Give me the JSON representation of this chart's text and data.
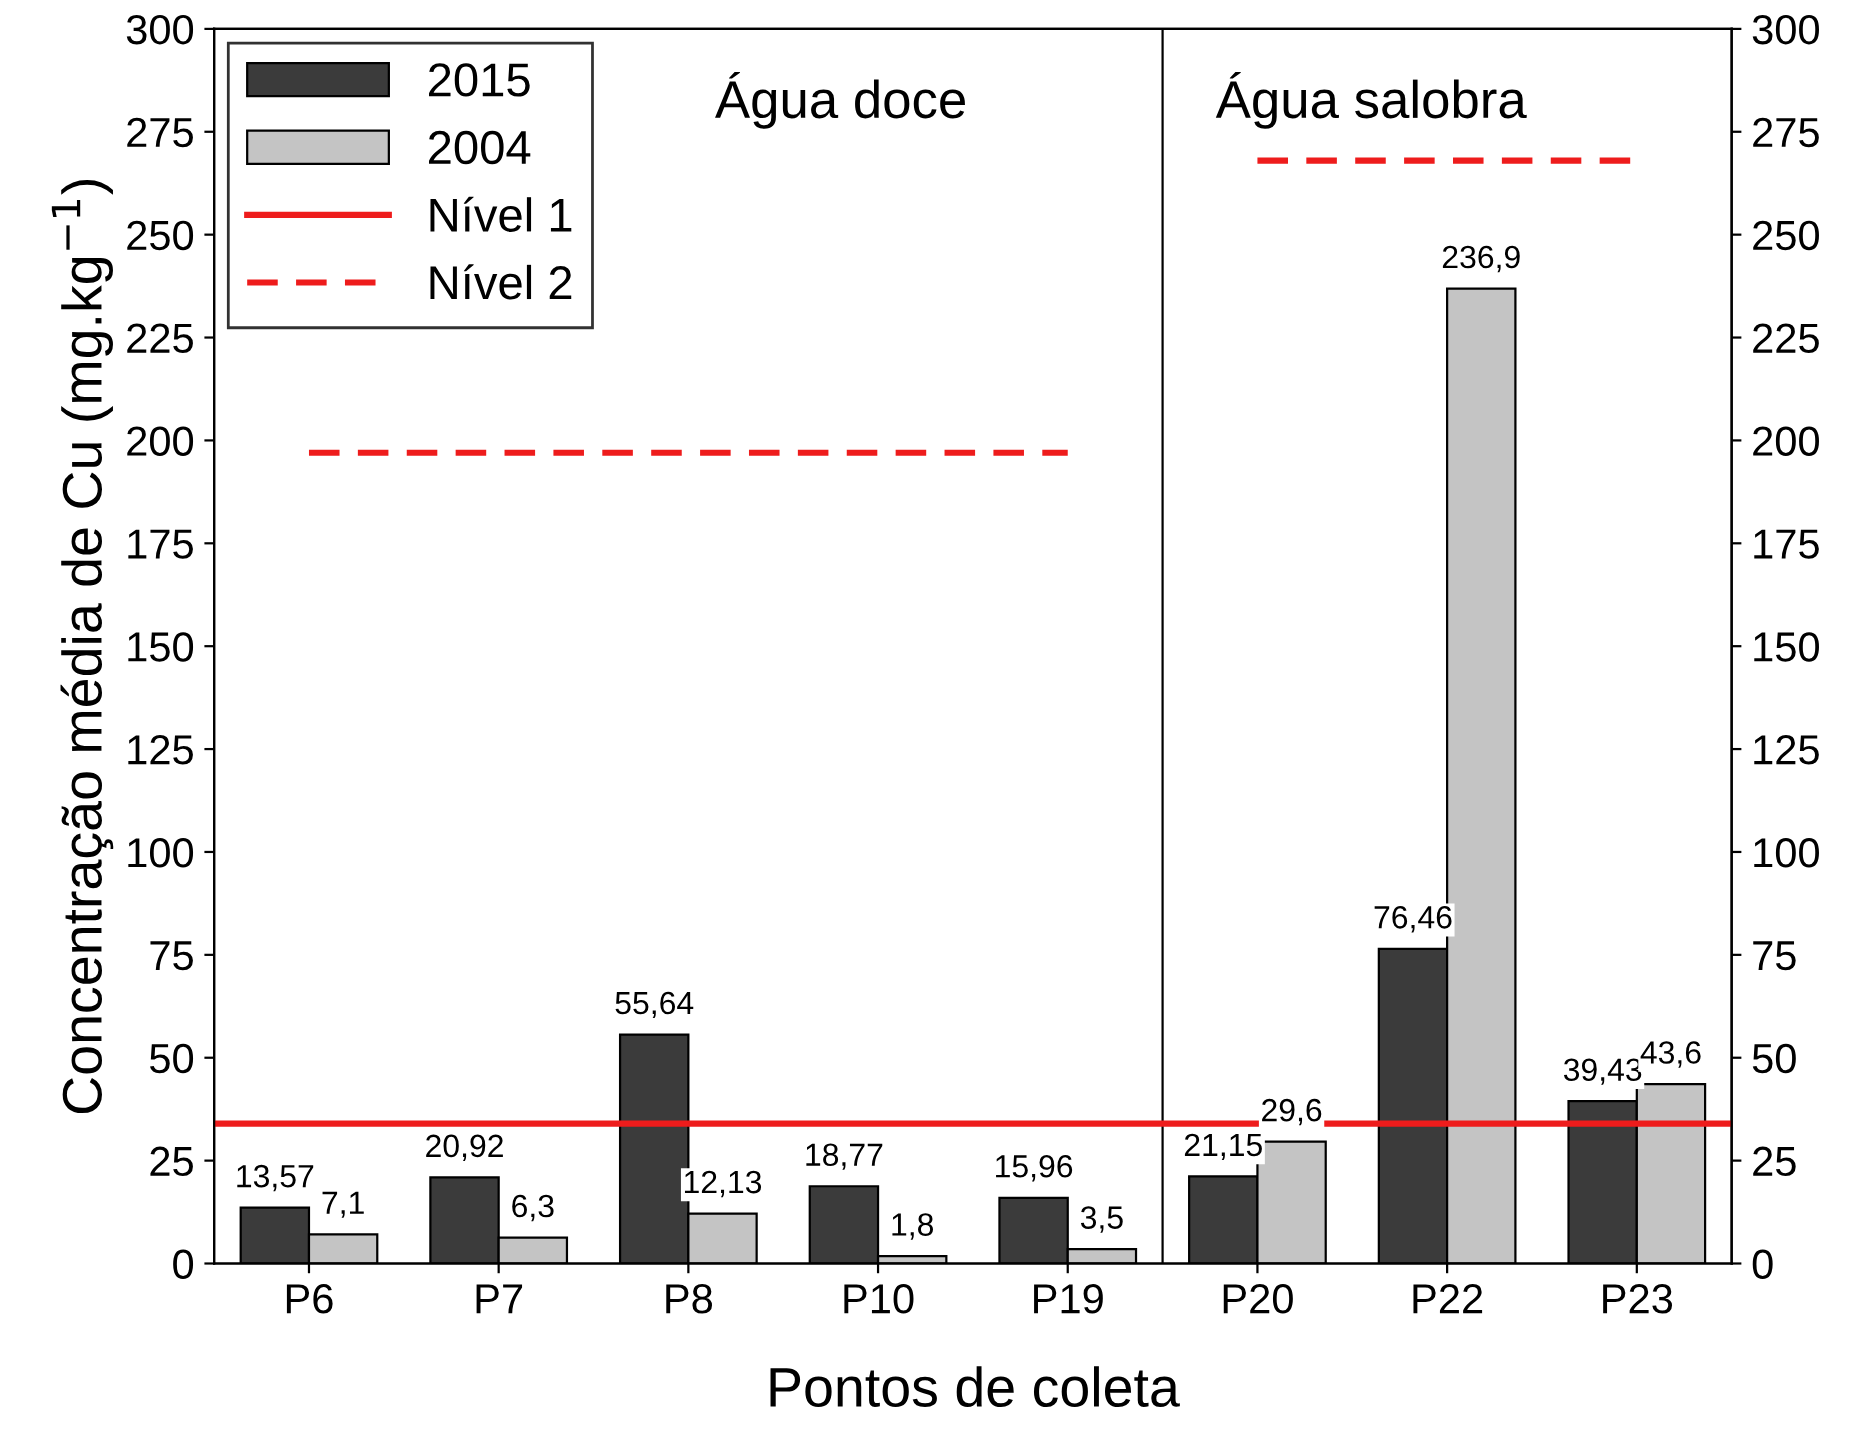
{
  "chart_data": {
    "type": "bar",
    "xlabel": "Pontos de coleta",
    "ylabel": "Concentração média de Cu (mg.kg$^{−1}$)",
    "categories": [
      "P6",
      "P7",
      "P8",
      "P10",
      "P19",
      "P20",
      "P22",
      "P23"
    ],
    "series": [
      {
        "name": "2015",
        "color": "#3b3b3b",
        "values": [
          13.57,
          20.92,
          55.64,
          18.77,
          15.96,
          21.15,
          76.46,
          39.43
        ],
        "value_labels": [
          "13,57",
          "20,92",
          "55,64",
          "18,77",
          "15,96",
          "21,15",
          "76,46",
          "39,43"
        ]
      },
      {
        "name": "2004",
        "color": "#c4c4c4",
        "values": [
          7.1,
          6.3,
          12.13,
          1.8,
          3.5,
          29.6,
          236.9,
          43.6
        ],
        "value_labels": [
          "7,1",
          "6,3",
          "12,13",
          "1,8",
          "3,5",
          "29,6",
          "236,9",
          "43,6"
        ]
      },
      {
        "name": "Nível 2",
        "type": "step",
        "color": "#ee1c1c",
        "line_style": "dashed",
        "values": [
          197,
          197,
          197,
          197,
          197,
          268,
          268,
          268
        ]
      }
    ],
    "ref_lines": [
      {
        "axis": "y",
        "value": 34,
        "label": "Nível 1",
        "color": "#ee1c1c",
        "line_style": "solid"
      }
    ],
    "annotations": [
      "Água doce",
      "Água salobra"
    ],
    "ylim": [
      0,
      300
    ],
    "yticks": [
      0,
      25,
      50,
      75,
      100,
      125,
      150,
      175,
      200,
      225,
      250,
      275,
      300
    ],
    "y2lim": [
      0,
      300
    ],
    "y2ticks": [
      0,
      25,
      50,
      75,
      100,
      125,
      150,
      175,
      200,
      225,
      250,
      275,
      300
    ],
    "legend": "top left",
    "grid": false
  }
}
